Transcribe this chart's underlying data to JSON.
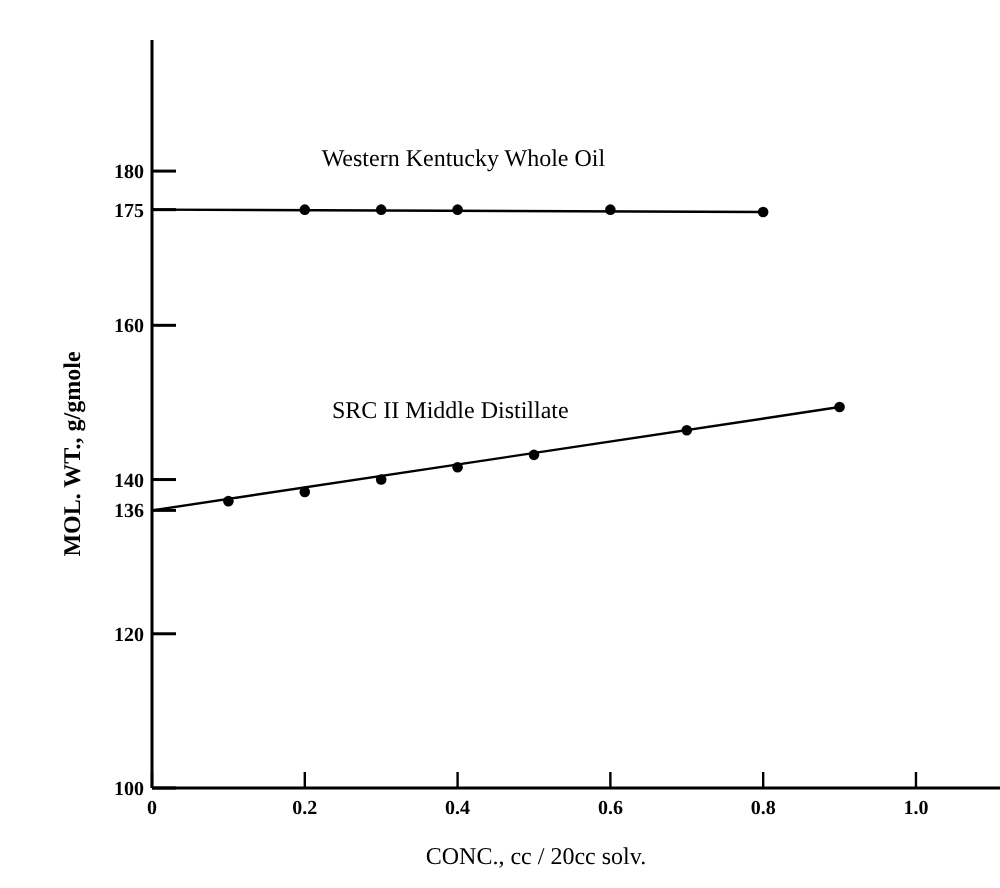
{
  "chart_data": {
    "type": "scatter",
    "xlabel": "CONC., cc / 20cc  solv.",
    "ylabel": "MOL. WT., g/gmole",
    "xlim": [
      0,
      1.11
    ],
    "ylim": [
      100,
      197
    ],
    "xticks": [
      0,
      0.2,
      0.4,
      0.6,
      0.8,
      {
        "value": 1,
        "label": "1.0"
      }
    ],
    "yticks": [
      100,
      120,
      136,
      140,
      160,
      175,
      180
    ],
    "grid": false,
    "series": [
      {
        "name": "Western Kentucky Whole Oil",
        "color": "#000000",
        "marker": "circle",
        "x": [
          0.2,
          0.3,
          0.4,
          0.6,
          0.8
        ],
        "values": [
          175,
          175,
          175,
          175,
          174.7
        ]
      },
      {
        "type": "line",
        "color": "#000000",
        "x": [
          0,
          0.8
        ],
        "values": [
          175,
          174.7
        ]
      },
      {
        "name": "SRC II Middle Distillate",
        "color": "#000000",
        "marker": "circle",
        "x": [
          0.1,
          0.2,
          0.3,
          0.4,
          0.5,
          0.7,
          0.9
        ],
        "values": [
          137.2,
          138.4,
          140,
          141.6,
          143.2,
          146.4,
          149.4
        ]
      },
      {
        "type": "line",
        "color": "#000000",
        "x": [
          0,
          0.9
        ],
        "values": [
          136,
          149.4
        ]
      }
    ]
  }
}
